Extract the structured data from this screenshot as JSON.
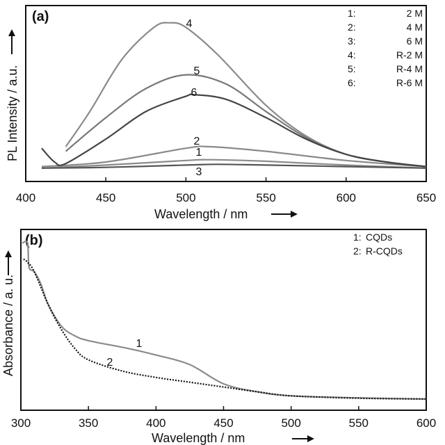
{
  "chart_data": [
    {
      "type": "line",
      "panel_label": "(a)",
      "xlabel": "Wavelength / nm",
      "ylabel": "PL Intensity / a.u.",
      "xlim": [
        400,
        650
      ],
      "ylim": [
        0,
        1
      ],
      "x_ticks": [
        "400",
        "450",
        "500",
        "550",
        "600",
        "650"
      ],
      "legend": [
        {
          "num": "1:",
          "text": "2 M"
        },
        {
          "num": "2:",
          "text": "4 M"
        },
        {
          "num": "3:",
          "text": "6 M"
        },
        {
          "num": "4:",
          "text": "R-2 M"
        },
        {
          "num": "5:",
          "text": "R-4 M"
        },
        {
          "num": "6:",
          "text": "R-6 M"
        }
      ],
      "series": [
        {
          "name": "1",
          "color": "#8a8a8a",
          "x": [
            410,
            450,
            500,
            515,
            550,
            600,
            650
          ],
          "y": [
            0.01,
            0.03,
            0.06,
            0.065,
            0.055,
            0.03,
            0.01
          ]
        },
        {
          "name": "2",
          "color": "#8a8a8a",
          "x": [
            410,
            450,
            500,
            515,
            550,
            600,
            650
          ],
          "y": [
            0.02,
            0.05,
            0.14,
            0.15,
            0.12,
            0.06,
            0.02
          ]
        },
        {
          "name": "3",
          "color": "#555555",
          "x": [
            410,
            450,
            500,
            520,
            550,
            600,
            650
          ],
          "y": [
            0.01,
            0.015,
            0.03,
            0.035,
            0.03,
            0.02,
            0.01
          ]
        },
        {
          "name": "4",
          "color": "#8a8a8a",
          "x": [
            425,
            440,
            460,
            480,
            490,
            500,
            520,
            550,
            575,
            600,
            625,
            650
          ],
          "y": [
            0.15,
            0.38,
            0.72,
            0.93,
            0.96,
            0.93,
            0.75,
            0.42,
            0.22,
            0.1,
            0.05,
            0.02
          ]
        },
        {
          "name": "5",
          "color": "#777777",
          "x": [
            425,
            450,
            475,
            500,
            525,
            550,
            575,
            600,
            625,
            650
          ],
          "y": [
            0.12,
            0.34,
            0.53,
            0.62,
            0.56,
            0.38,
            0.21,
            0.1,
            0.05,
            0.02
          ]
        },
        {
          "name": "6",
          "color": "#444444",
          "x": [
            410,
            418,
            425,
            450,
            475,
            500,
            505,
            525,
            550,
            575,
            600,
            625,
            650
          ],
          "y": [
            0.14,
            0.05,
            0.04,
            0.2,
            0.38,
            0.48,
            0.49,
            0.46,
            0.34,
            0.2,
            0.1,
            0.05,
            0.02
          ]
        }
      ]
    },
    {
      "type": "line",
      "panel_label": "(b)",
      "xlabel": "Wavelength / nm",
      "ylabel": "Absorbance / a. u.",
      "xlim": [
        300,
        600
      ],
      "ylim": [
        0,
        1
      ],
      "x_ticks": [
        "300",
        "350",
        "400",
        "450",
        "500",
        "550",
        "600"
      ],
      "legend": [
        {
          "num": "1:",
          "text": "CQDs"
        },
        {
          "num": "2:",
          "text": "R-CQDs"
        }
      ],
      "series": [
        {
          "name": "1",
          "color": "#8a8a8a",
          "dash": "none",
          "x": [
            301,
            305,
            306,
            310,
            315,
            320,
            330,
            340,
            350,
            380,
            400,
            425,
            450,
            475,
            500,
            550,
            600
          ],
          "y": [
            0.98,
            0.98,
            0.83,
            0.8,
            0.72,
            0.6,
            0.46,
            0.4,
            0.37,
            0.32,
            0.28,
            0.22,
            0.1,
            0.05,
            0.025,
            0.012,
            0.005
          ]
        },
        {
          "name": "2",
          "color": "#111111",
          "dash": "2,2",
          "x": [
            302,
            305,
            310,
            320,
            330,
            340,
            350,
            375,
            400,
            425,
            450,
            475,
            500,
            550,
            600
          ],
          "y": [
            0.88,
            0.86,
            0.8,
            0.6,
            0.44,
            0.32,
            0.25,
            0.18,
            0.14,
            0.11,
            0.08,
            0.05,
            0.025,
            0.01,
            0.005
          ]
        }
      ]
    }
  ],
  "curve_labels_a": [
    "4",
    "5",
    "6",
    "2",
    "1",
    "3"
  ],
  "curve_labels_b": [
    "1",
    "2"
  ]
}
